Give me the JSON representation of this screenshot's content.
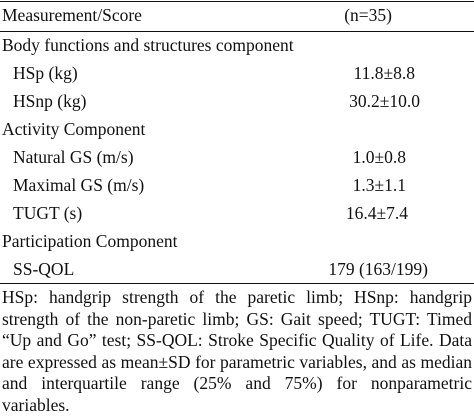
{
  "table": {
    "header": {
      "label": "Measurement/Score",
      "value": "(n=35)"
    },
    "rows": [
      {
        "kind": "section",
        "label": "Body functions and structures component",
        "value": ""
      },
      {
        "kind": "item",
        "label": "HSp (kg)",
        "value": "11.8±8.8"
      },
      {
        "kind": "item",
        "label": "HSnp (kg)",
        "value": "30.2±10.0"
      },
      {
        "kind": "section",
        "label": "Activity Component",
        "value": ""
      },
      {
        "kind": "item",
        "label": "Natural GS (m/s)",
        "value": "1.0±0.8"
      },
      {
        "kind": "item",
        "label": "Maximal GS (m/s)",
        "value": "1.3±1.1"
      },
      {
        "kind": "item",
        "label": "TUGT (s)",
        "value": "16.4±7.4"
      },
      {
        "kind": "section",
        "label": "Participation Component",
        "value": ""
      },
      {
        "kind": "item",
        "label": "SS-QOL",
        "value": "179 (163/199)"
      }
    ]
  },
  "footnote": "HSp: handgrip strength of the paretic limb; HSnp: handgrip strength of the non-paretic limb; GS: Gait speed; TUGT: Timed “Up and Go” test; SS-QOL: Stroke Specific Quality of Life. Data are expressed as mean±SD for parametric variables, and as median and interquartile range (25% and 75%) for nonparametric variables."
}
